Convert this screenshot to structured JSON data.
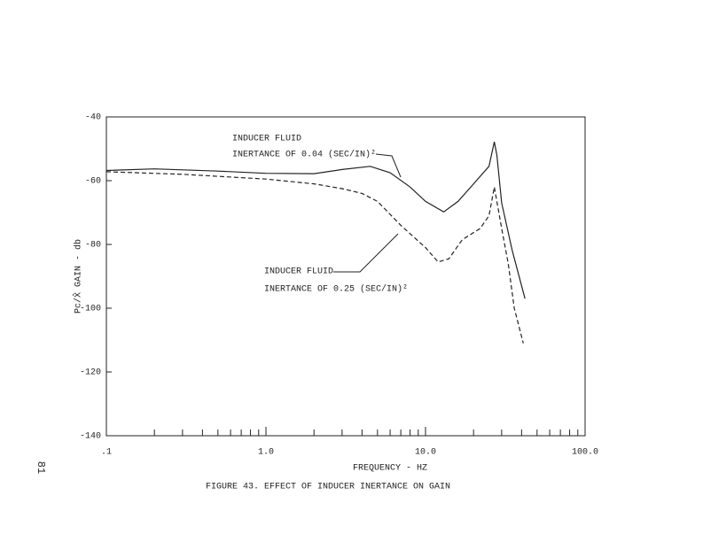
{
  "chart_data": {
    "type": "line",
    "x_label": "FREQUENCY - HZ",
    "y_label": "Pc/X̂  GAIN - db",
    "caption": "FIGURE 43.  EFFECT OF INDUCER INERTANCE ON GAIN",
    "page_number": "81",
    "annotations": [
      {
        "lines": [
          "INDUCER FLUID",
          "INERTANCE OF 0.04 (SEC/IN)²"
        ]
      },
      {
        "lines": [
          "INDUCER FLUID",
          "INERTANCE OF 0.25 (SEC/IN)²"
        ]
      }
    ],
    "xscale": "log",
    "xlim": [
      0.1,
      100
    ],
    "ylim": [
      -140,
      -40
    ],
    "xticks": [
      {
        "value": 0.1,
        "label": ".1"
      },
      {
        "value": 1,
        "label": "1.0"
      },
      {
        "value": 10,
        "label": "10.0"
      },
      {
        "value": 100,
        "label": "100.0"
      }
    ],
    "xminorticks": [
      0.2,
      0.3,
      0.4,
      0.5,
      0.6,
      0.7,
      0.8,
      0.9,
      2,
      3,
      4,
      5,
      6,
      7,
      8,
      9,
      20,
      30,
      40,
      50,
      60,
      70,
      80,
      90
    ],
    "yticks": [
      -140,
      -120,
      -100,
      -80,
      -60,
      -40
    ],
    "series": [
      {
        "style": "solid",
        "color": "#222222",
        "x": [
          0.1,
          0.2,
          0.5,
          1,
          2,
          3,
          4.5,
          6,
          8,
          10,
          13,
          16,
          20,
          25,
          27,
          28,
          30,
          35,
          42
        ],
        "values": [
          -56.8,
          -56.3,
          -57,
          -57.7,
          -57.8,
          -56.5,
          -55.5,
          -57.5,
          -62,
          -66.5,
          -69.8,
          -66.5,
          -61,
          -55.5,
          -47.8,
          -52,
          -67,
          -82,
          -97
        ]
      },
      {
        "style": "dashed",
        "color": "#222222",
        "x": [
          0.1,
          0.3,
          1,
          2,
          3,
          4,
          5,
          7,
          10,
          12,
          14,
          17,
          22,
          25,
          27,
          30,
          33,
          36,
          41
        ],
        "values": [
          -57.2,
          -58,
          -59.5,
          -61,
          -62.5,
          -64,
          -66.5,
          -74,
          -81,
          -85.5,
          -84.5,
          -78.5,
          -75,
          -71,
          -62,
          -75,
          -86,
          -100,
          -111
        ]
      }
    ]
  }
}
